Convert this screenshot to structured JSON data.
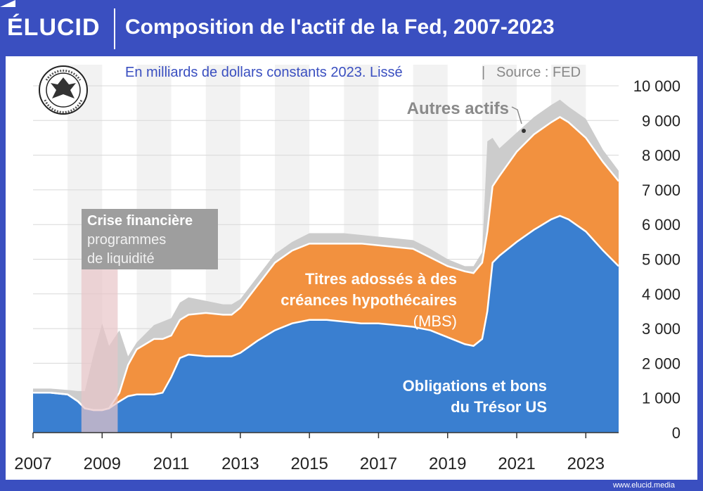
{
  "header": {
    "brand": "ÉLUCID",
    "title": "Composition de l'actif de la Fed, 2007-2023"
  },
  "footer": {
    "url": "www.elucid.media"
  },
  "chart_data": {
    "type": "area",
    "title": "Composition de l'actif de la Fed, 2007-2023",
    "subtitle": "En milliards de dollars constants 2023. Lissé",
    "source": "Source : FED",
    "ylim": [
      0,
      10000
    ],
    "y_ticks": [
      "0",
      "1 000",
      "2 000",
      "3 000",
      "4 000",
      "5 000",
      "6 000",
      "7 000",
      "8 000",
      "9 000",
      "10 000"
    ],
    "y_tick_values": [
      0,
      1000,
      2000,
      3000,
      4000,
      5000,
      6000,
      7000,
      8000,
      9000,
      10000
    ],
    "xlim": [
      2007.0,
      2023.95
    ],
    "x_ticks": [
      "2007",
      "2009",
      "2011",
      "2013",
      "2015",
      "2017",
      "2019",
      "2021",
      "2023"
    ],
    "x_tick_values": [
      2007,
      2009,
      2011,
      2013,
      2015,
      2017,
      2019,
      2021,
      2023
    ],
    "stacked": true,
    "colors": {
      "treasury": "#3a7fd0",
      "mbs": "#f2913f",
      "other": "#cccccc",
      "crisis_band": "#e8c4c8",
      "crisis_box": "#9e9e9e",
      "alt_band": "#f2f2f2",
      "grid": "#d8d8d8"
    },
    "x": [
      2007.0,
      2007.5,
      2008.0,
      2008.3,
      2008.5,
      2008.75,
      2009.0,
      2009.2,
      2009.5,
      2009.75,
      2010.0,
      2010.5,
      2010.75,
      2011.0,
      2011.25,
      2011.5,
      2012.0,
      2012.5,
      2012.75,
      2013.0,
      2013.5,
      2014.0,
      2014.5,
      2015.0,
      2015.5,
      2016.0,
      2016.5,
      2017.0,
      2017.5,
      2018.0,
      2018.5,
      2019.0,
      2019.5,
      2019.75,
      2020.0,
      2020.15,
      2020.3,
      2020.5,
      2021.0,
      2021.5,
      2022.0,
      2022.25,
      2022.5,
      2023.0,
      2023.5,
      2023.95
    ],
    "series": [
      {
        "name": "Obligations et bons du Trésor US",
        "values": [
          1150,
          1150,
          1100,
          900,
          700,
          650,
          650,
          700,
          900,
          1050,
          1100,
          1100,
          1150,
          1600,
          2150,
          2250,
          2200,
          2200,
          2200,
          2300,
          2650,
          2950,
          3150,
          3250,
          3250,
          3200,
          3150,
          3150,
          3100,
          3050,
          2950,
          2750,
          2550,
          2500,
          2700,
          3500,
          4900,
          5100,
          5500,
          5850,
          6150,
          6250,
          6150,
          5800,
          5250,
          4800
        ]
      },
      {
        "name": "Titres adossés à des créances hypothécaires (MBS)",
        "values": [
          0,
          0,
          0,
          0,
          0,
          0,
          0,
          0,
          250,
          900,
          1300,
          1600,
          1550,
          1200,
          1100,
          1150,
          1250,
          1200,
          1200,
          1300,
          1600,
          1950,
          2100,
          2200,
          2200,
          2250,
          2300,
          2250,
          2250,
          2250,
          2100,
          2050,
          2100,
          2100,
          2200,
          2300,
          2200,
          2300,
          2600,
          2750,
          2800,
          2850,
          2800,
          2700,
          2550,
          2450
        ]
      },
      {
        "name": "Autres actifs",
        "values": [
          120,
          120,
          130,
          300,
          500,
          1600,
          2500,
          1800,
          1800,
          250,
          200,
          400,
          500,
          500,
          500,
          500,
          350,
          300,
          300,
          250,
          250,
          250,
          250,
          300,
          300,
          300,
          250,
          250,
          250,
          250,
          250,
          200,
          150,
          200,
          300,
          2600,
          1400,
          800,
          550,
          500,
          500,
          500,
          450,
          550,
          350,
          300
        ]
      }
    ],
    "annotations": {
      "crisis_title": "Crise financière",
      "crisis_line1": "programmes",
      "crisis_line2": "de liquidité",
      "crisis_range": [
        2008.4,
        2009.45
      ],
      "mbs_line1": "Titres adossés à des",
      "mbs_line2": "créances hypothécaires",
      "mbs_line3": "(MBS)",
      "treasury_line1": "Obligations et bons",
      "treasury_line2": "du Trésor US",
      "other_label": "Autres actifs"
    }
  }
}
